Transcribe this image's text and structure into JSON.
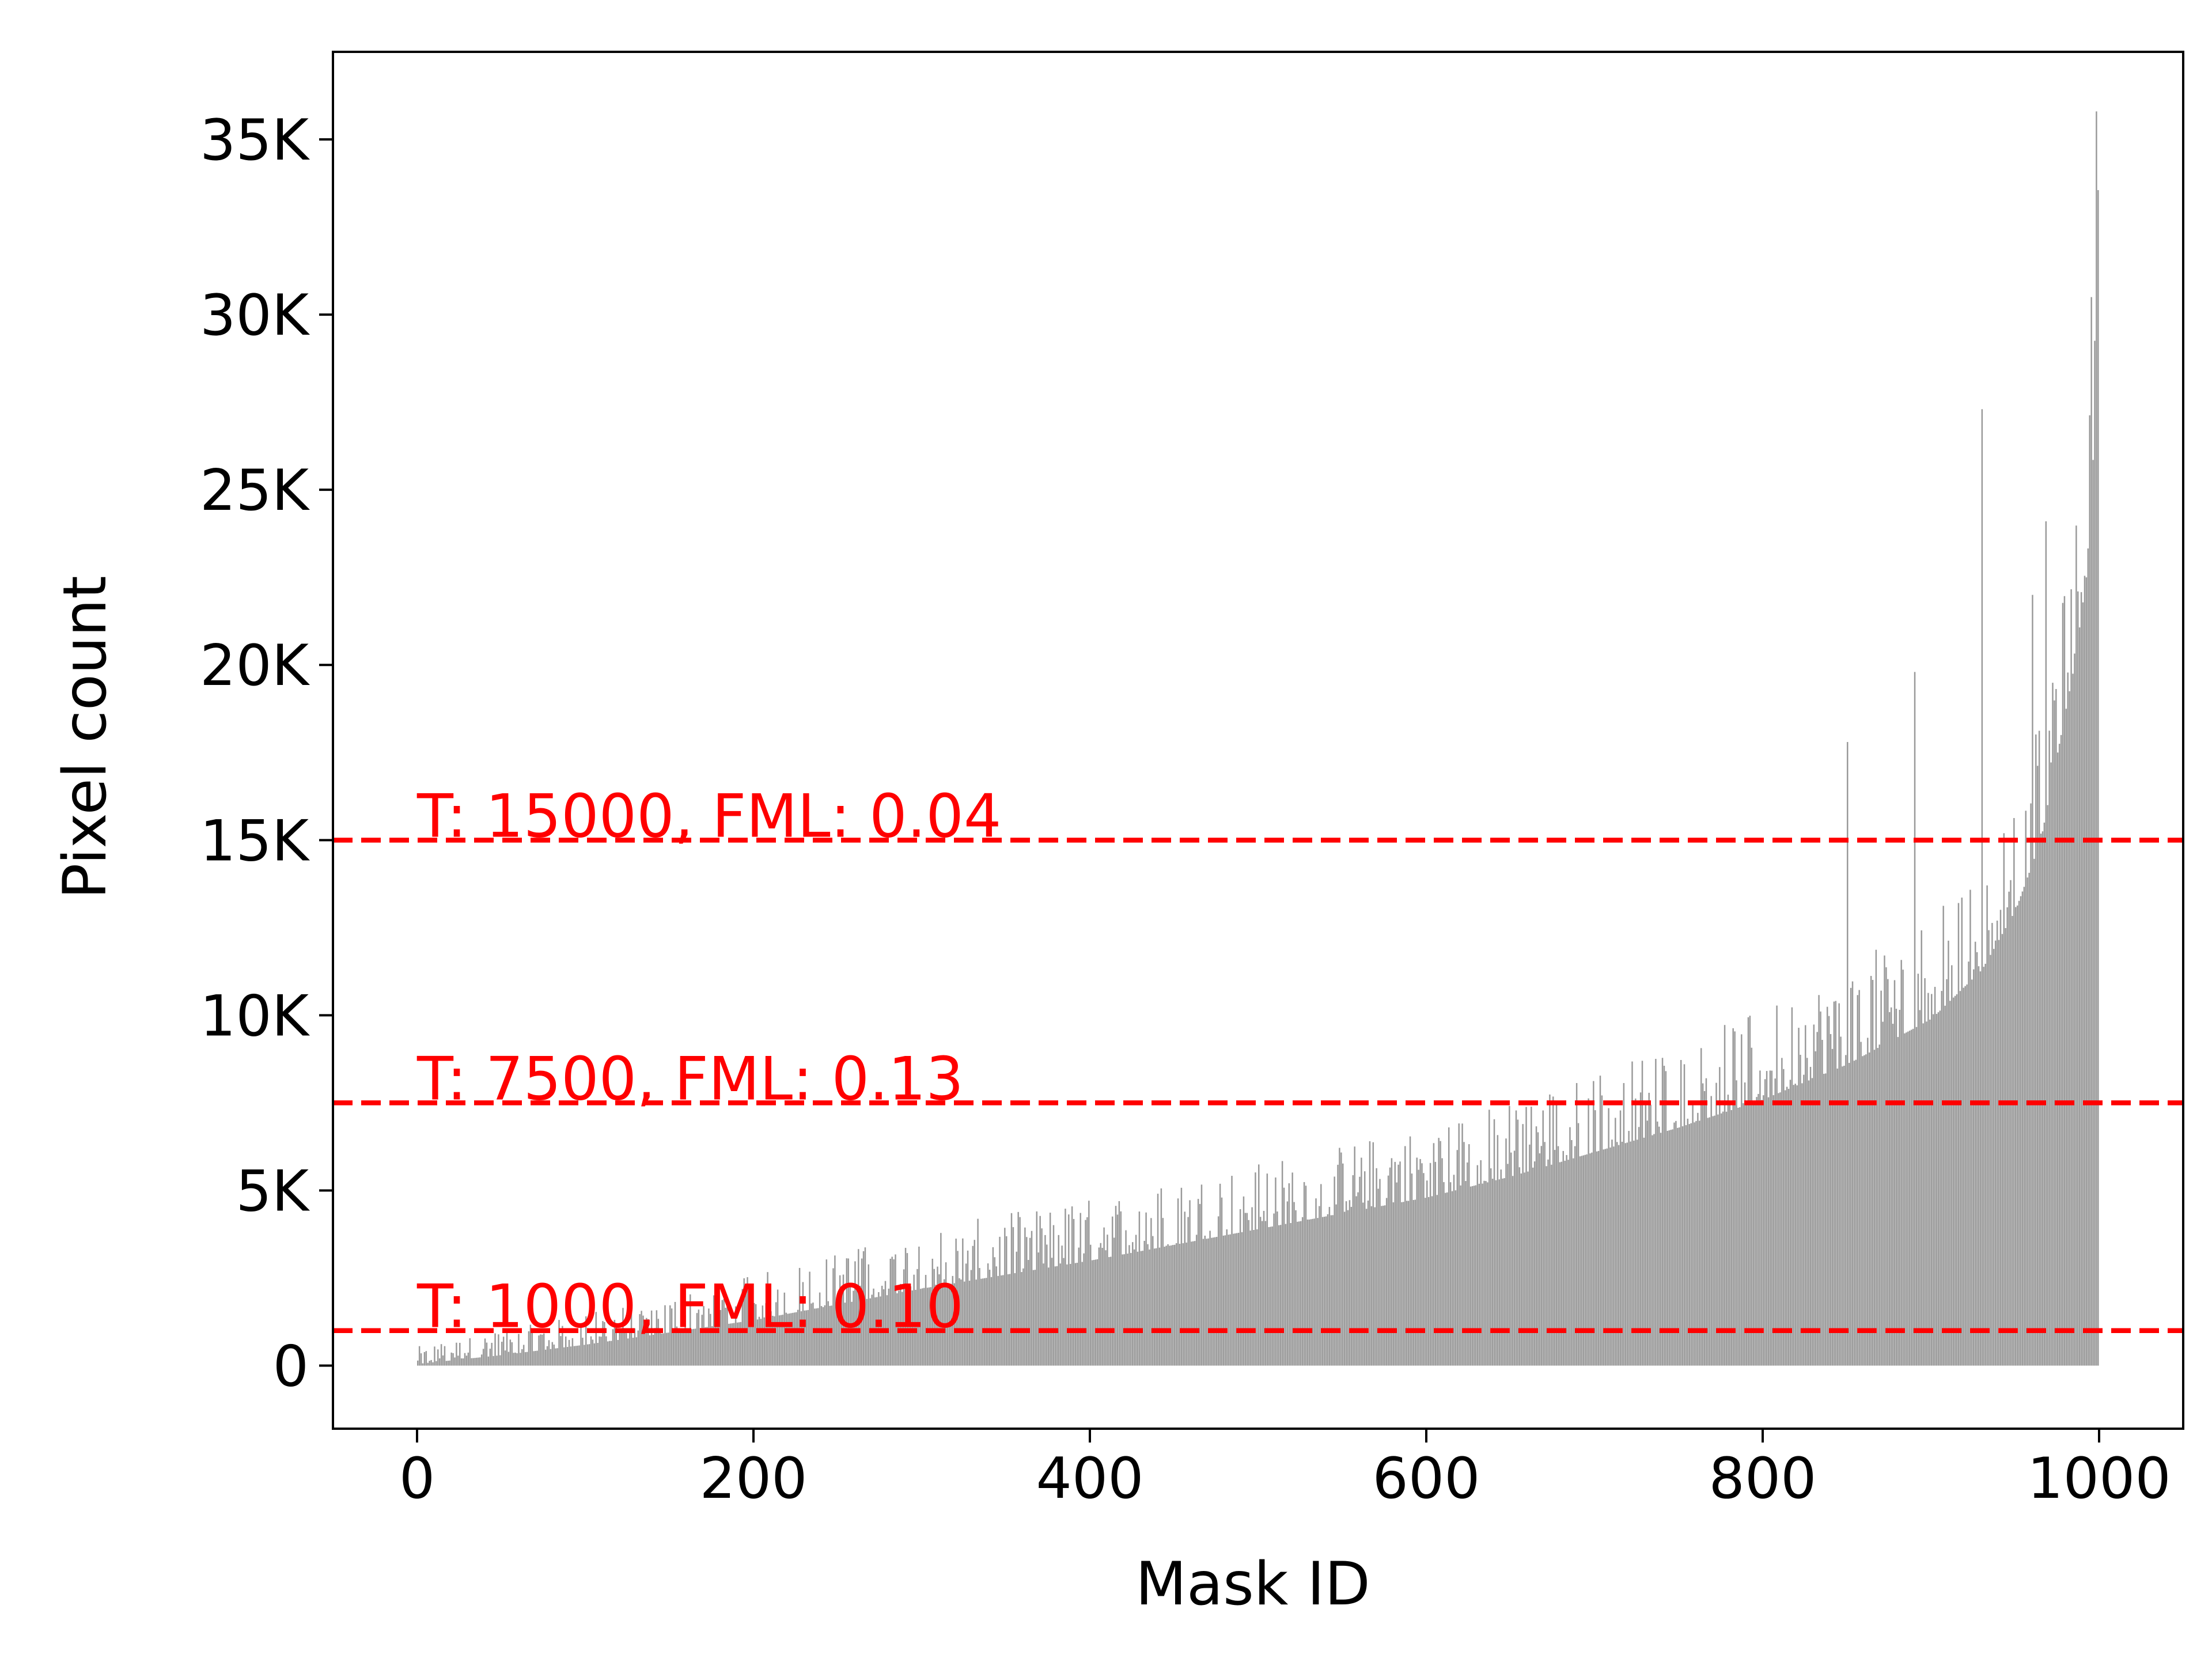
{
  "chart_data": {
    "type": "bar",
    "title": "",
    "xlabel": "Mask ID",
    "ylabel": "Pixel count",
    "xlim": [
      -50,
      1050
    ],
    "ylim": [
      -1800,
      37500
    ],
    "xticks": [
      {
        "value": 0,
        "label": "0"
      },
      {
        "value": 200,
        "label": "200"
      },
      {
        "value": 400,
        "label": "400"
      },
      {
        "value": 600,
        "label": "600"
      },
      {
        "value": 800,
        "label": "800"
      },
      {
        "value": 1000,
        "label": "1000"
      }
    ],
    "yticks": [
      {
        "value": 0,
        "label": "0"
      },
      {
        "value": 5000,
        "label": "5K"
      },
      {
        "value": 10000,
        "label": "10K"
      },
      {
        "value": 15000,
        "label": "15K"
      },
      {
        "value": 20000,
        "label": "20K"
      },
      {
        "value": 25000,
        "label": "25K"
      },
      {
        "value": 30000,
        "label": "30K"
      },
      {
        "value": 35000,
        "label": "35K"
      }
    ],
    "grid": false,
    "bar_color": "#999999",
    "threshold_color": "#ff0000",
    "series": [
      {
        "mask_count": 1000,
        "baseline_curve": [
          [
            0,
            50
          ],
          [
            50,
            300
          ],
          [
            100,
            600
          ],
          [
            150,
            950
          ],
          [
            200,
            1300
          ],
          [
            250,
            1750
          ],
          [
            300,
            2200
          ],
          [
            350,
            2600
          ],
          [
            400,
            3000
          ],
          [
            450,
            3450
          ],
          [
            500,
            3900
          ],
          [
            550,
            4350
          ],
          [
            600,
            4800
          ],
          [
            650,
            5400
          ],
          [
            700,
            6100
          ],
          [
            750,
            6800
          ],
          [
            800,
            7600
          ],
          [
            850,
            8600
          ],
          [
            900,
            9900
          ],
          [
            930,
            11300
          ],
          [
            950,
            13000
          ],
          [
            965,
            15000
          ],
          [
            975,
            17500
          ],
          [
            985,
            20000
          ],
          [
            992,
            22500
          ],
          [
            996,
            25800
          ],
          [
            998,
            30800
          ],
          [
            1000,
            35800
          ]
        ],
        "spike_amplitude": [
          [
            0,
            500
          ],
          [
            150,
            1100
          ],
          [
            300,
            1700
          ],
          [
            500,
            1900
          ],
          [
            700,
            2300
          ],
          [
            850,
            2800
          ],
          [
            950,
            3300
          ],
          [
            1000,
            4000
          ]
        ],
        "notable_peaks": [
          [
            850,
            17800
          ],
          [
            890,
            19800
          ],
          [
            930,
            27300
          ],
          [
            960,
            22000
          ],
          [
            968,
            24100
          ],
          [
            995,
            30500
          ],
          [
            998,
            35800
          ]
        ]
      }
    ],
    "thresholds": [
      {
        "value": 15000,
        "label": "T: 15000, FML: 0.04"
      },
      {
        "value": 7500,
        "label": "T: 7500, FML: 0.13"
      },
      {
        "value": 1000,
        "label": "T: 1000, FML: 0.10"
      }
    ]
  }
}
